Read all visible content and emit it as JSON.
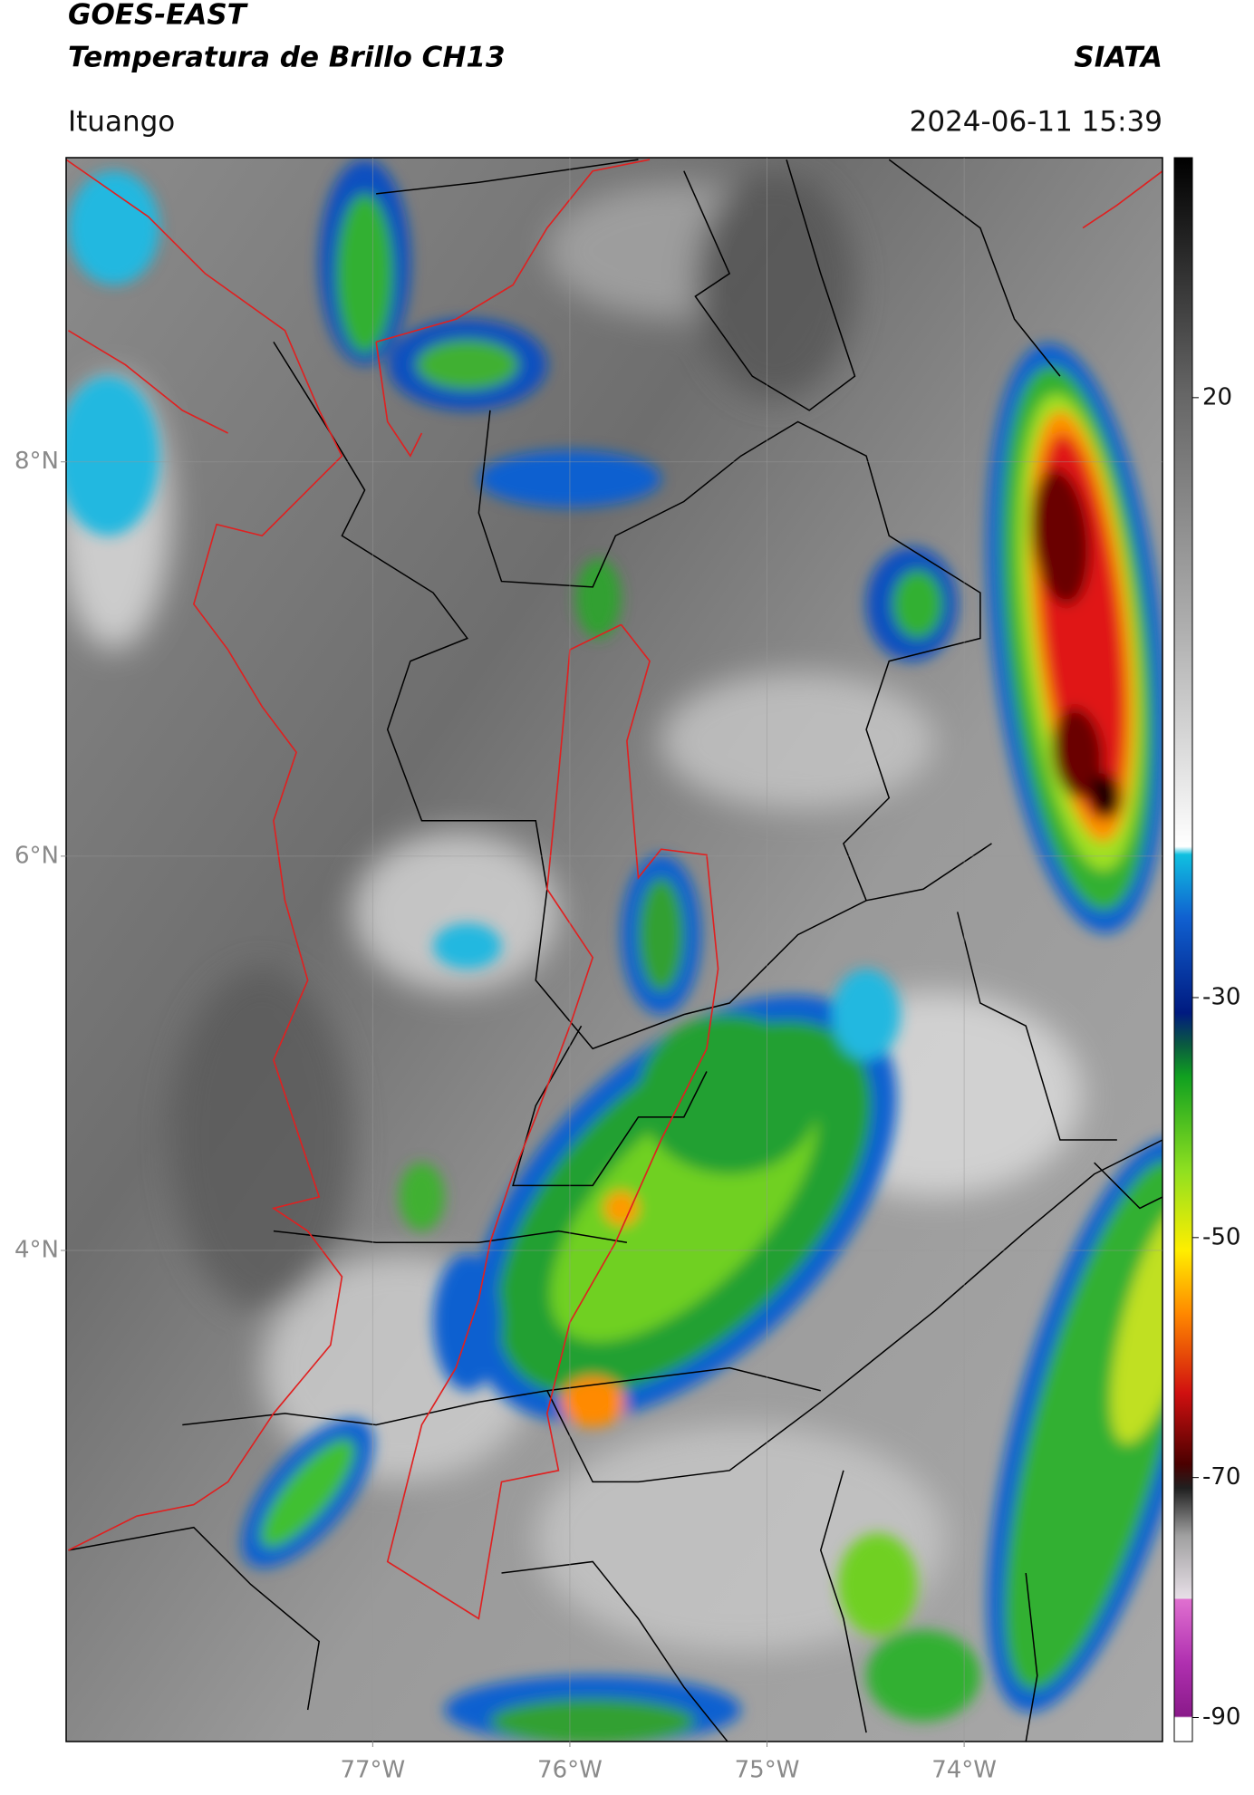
{
  "header": {
    "title": "GOES-EAST",
    "subtitle": "Temperatura de Brillo CH13",
    "source": "SIATA",
    "location": "Ituango",
    "timestamp": "2024-06-11 15:39"
  },
  "map": {
    "xlim": [
      -78.555,
      -72.994
    ],
    "ylim": [
      1.509,
      9.543
    ],
    "xticks": [
      {
        "value": -77,
        "label": "77°W"
      },
      {
        "value": -76,
        "label": "76°W"
      },
      {
        "value": -75,
        "label": "75°W"
      },
      {
        "value": -74,
        "label": "74°W"
      }
    ],
    "yticks": [
      {
        "value": 8,
        "label": "8°N"
      },
      {
        "value": 6,
        "label": "6°N"
      },
      {
        "value": 4,
        "label": "4°N"
      }
    ],
    "grid": true
  },
  "colorbar": {
    "clim": [
      -92,
      40
    ],
    "ticks": [
      20,
      -30,
      -50,
      -70,
      -90
    ]
  }
}
